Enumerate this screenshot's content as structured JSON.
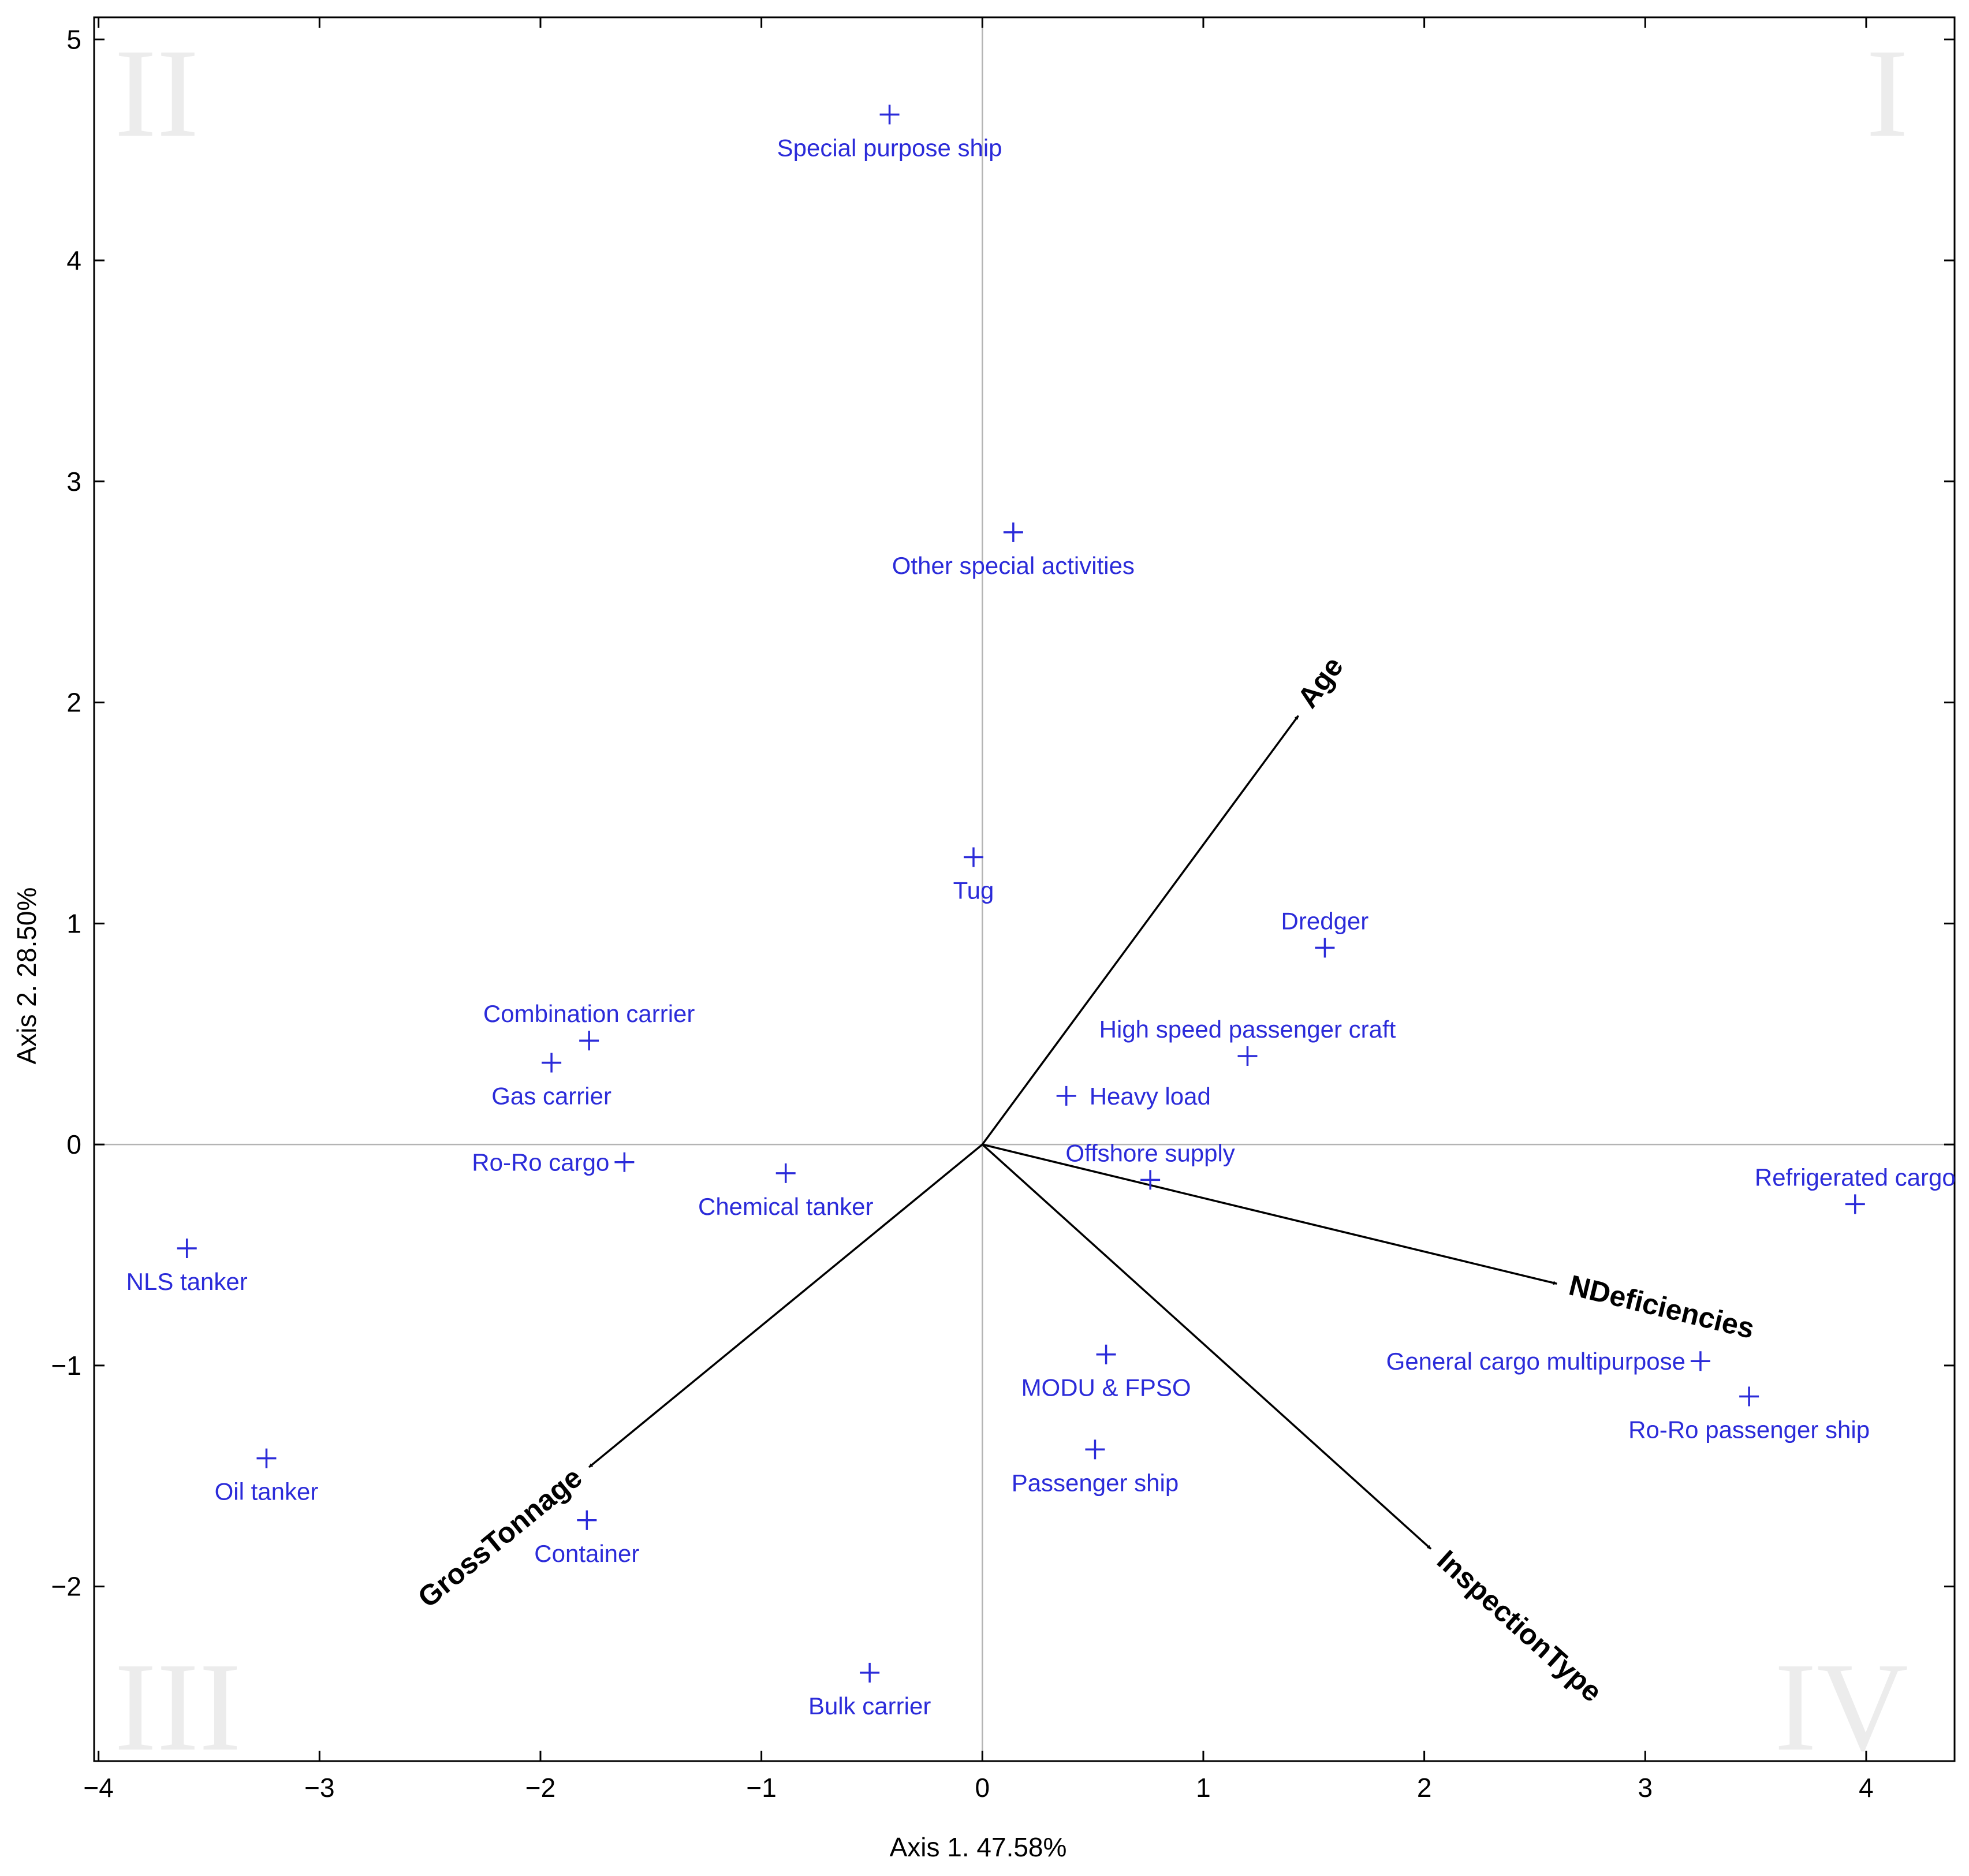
{
  "chart_data": {
    "type": "scatter",
    "title": "",
    "xlabel": "Axis 1. 47.58%",
    "ylabel": "Axis 2. 28.50%",
    "xlim": [
      -4.02,
      4.4
    ],
    "ylim": [
      -2.79,
      5.1
    ],
    "xticks": [
      -4,
      -3,
      -2,
      -1,
      0,
      1,
      2,
      3,
      4
    ],
    "yticks": [
      -2,
      -1,
      0,
      1,
      2,
      3,
      4,
      5
    ],
    "xtick_labels": [
      "−4",
      "−3",
      "−2",
      "−1",
      "0",
      "1",
      "2",
      "3",
      "4"
    ],
    "ytick_labels": [
      "−2",
      "−1",
      "0",
      "1",
      "2",
      "3",
      "4",
      "5"
    ],
    "quadrants": [
      "I",
      "II",
      "III",
      "IV"
    ],
    "colors": {
      "points": "#2b2bd9",
      "vectors": "#000000",
      "reference_lines": "#b4b4b4",
      "quadrant_text": "#ececec"
    },
    "points": [
      {
        "label": "Special purpose ship",
        "x": -0.42,
        "y": 4.66,
        "label_pos": "below"
      },
      {
        "label": "Other special activities",
        "x": 0.14,
        "y": 2.77,
        "label_pos": "below"
      },
      {
        "label": "Tug",
        "x": -0.04,
        "y": 1.3,
        "label_pos": "below"
      },
      {
        "label": "Dredger",
        "x": 1.55,
        "y": 0.89,
        "label_pos": "above"
      },
      {
        "label": "High speed passenger craft",
        "x": 1.2,
        "y": 0.4,
        "label_pos": "above"
      },
      {
        "label": "Heavy load",
        "x": 0.38,
        "y": 0.22,
        "label_pos": "right"
      },
      {
        "label": "Combination carrier",
        "x": -1.78,
        "y": 0.47,
        "label_pos": "above"
      },
      {
        "label": "Gas carrier",
        "x": -1.95,
        "y": 0.37,
        "label_pos": "below"
      },
      {
        "label": "Ro-Ro cargo",
        "x": -1.62,
        "y": -0.08,
        "label_pos": "left"
      },
      {
        "label": "Chemical tanker",
        "x": -0.89,
        "y": -0.13,
        "label_pos": "below"
      },
      {
        "label": "Offshore supply",
        "x": 0.76,
        "y": -0.16,
        "label_pos": "above"
      },
      {
        "label": "Refrigerated cargo",
        "x": 3.95,
        "y": -0.27,
        "label_pos": "above"
      },
      {
        "label": "NLS tanker",
        "x": -3.6,
        "y": -0.47,
        "label_pos": "below"
      },
      {
        "label": "MODU & FPSO",
        "x": 0.56,
        "y": -0.95,
        "label_pos": "below"
      },
      {
        "label": "General cargo multipurpose",
        "x": 3.25,
        "y": -0.98,
        "label_pos": "left"
      },
      {
        "label": "Ro-Ro passenger ship",
        "x": 3.47,
        "y": -1.14,
        "label_pos": "below"
      },
      {
        "label": "Passenger ship",
        "x": 0.51,
        "y": -1.38,
        "label_pos": "below"
      },
      {
        "label": "Oil tanker",
        "x": -3.24,
        "y": -1.42,
        "label_pos": "below"
      },
      {
        "label": "Container",
        "x": -1.79,
        "y": -1.7,
        "label_pos": "below"
      },
      {
        "label": "Bulk carrier",
        "x": -0.51,
        "y": -2.39,
        "label_pos": "below"
      }
    ],
    "vectors": [
      {
        "label": "Age",
        "x": 1.43,
        "y": 1.94
      },
      {
        "label": "NDeficiencies",
        "x": 2.6,
        "y": -0.63
      },
      {
        "label": "InspectionType",
        "x": 2.03,
        "y": -1.83
      },
      {
        "label": "GrossTonnage",
        "x": -1.78,
        "y": -1.46
      }
    ]
  }
}
